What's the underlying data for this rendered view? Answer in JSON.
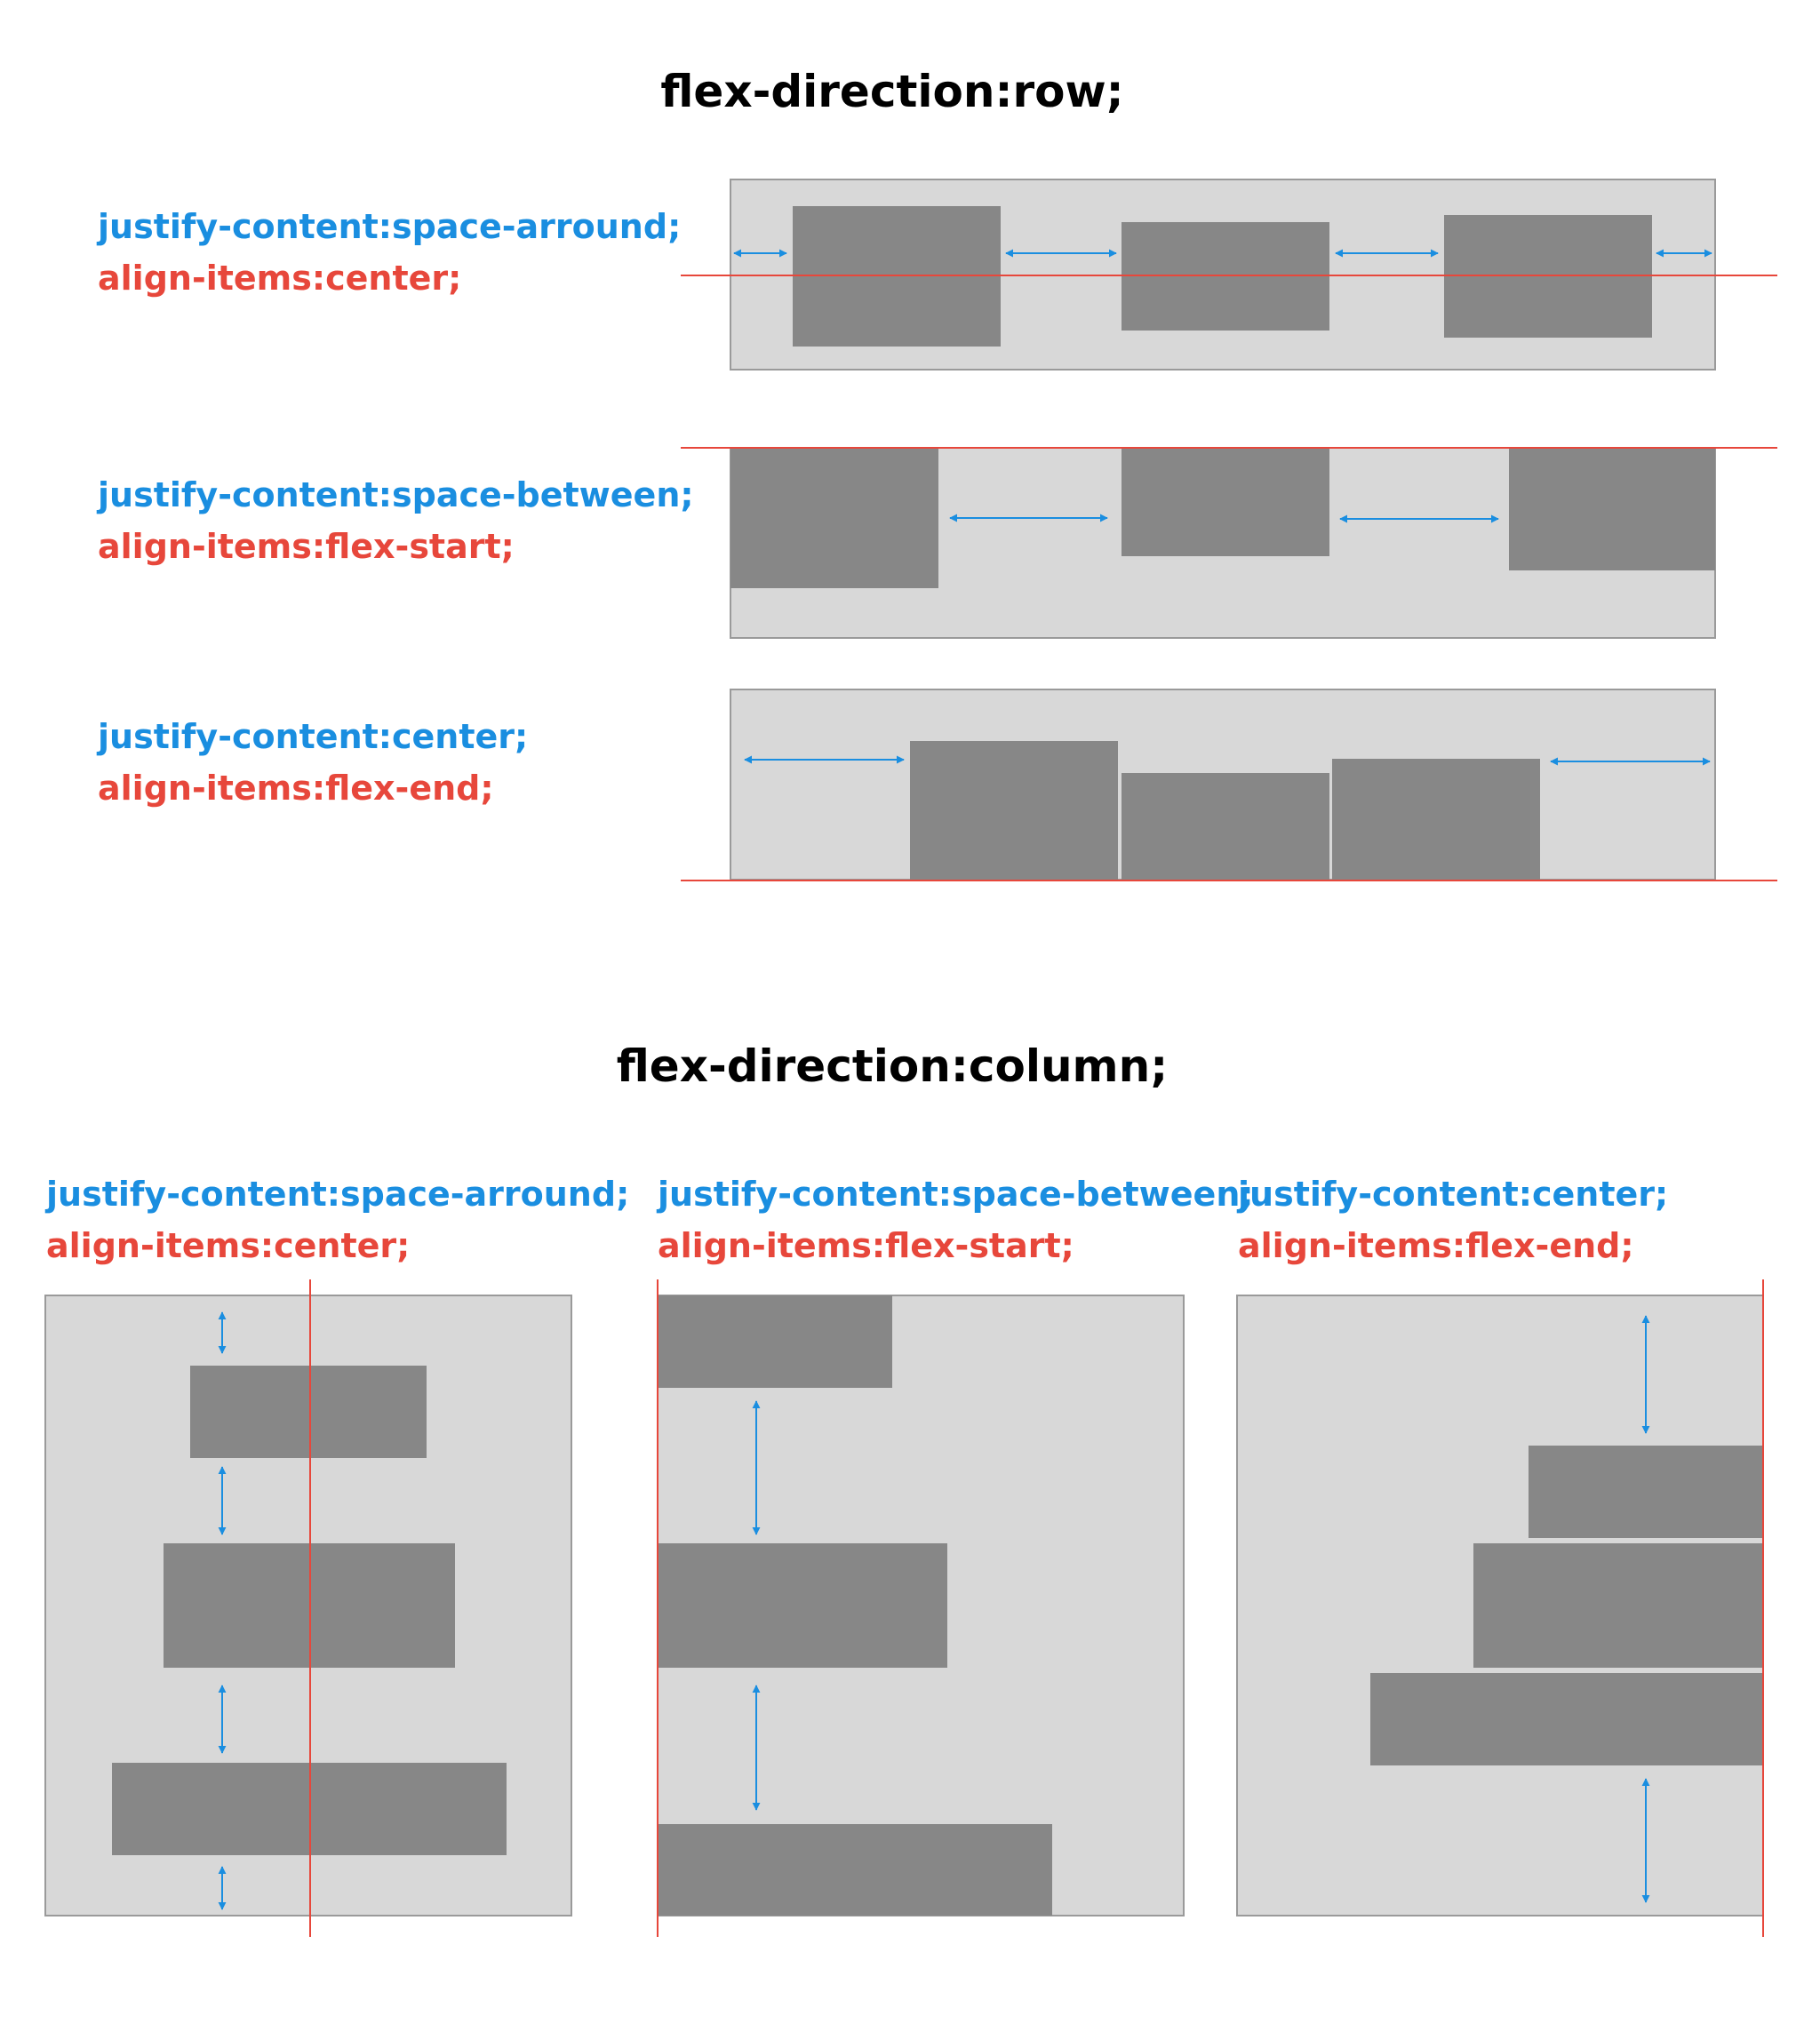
{
  "row_section": {
    "title": "flex-direction:row;",
    "examples": [
      {
        "justify": "justify-content:space-arround;",
        "align": "align-items:center;"
      },
      {
        "justify": "justify-content:space-between;",
        "align": "align-items:flex-start;"
      },
      {
        "justify": "justify-content:center;",
        "align": "align-items:flex-end;"
      }
    ]
  },
  "column_section": {
    "title": "flex-direction:column;",
    "examples": [
      {
        "justify": "justify-content:space-arround;",
        "align": "align-items:center;"
      },
      {
        "justify": "justify-content:space-between;",
        "align": "align-items:flex-start;"
      },
      {
        "justify": "justify-content:center;",
        "align": "align-items:flex-end;"
      }
    ]
  },
  "colors": {
    "justify_text": "#1a8ee0",
    "align_text": "#e7473b",
    "container_fill": "#d8d8d8",
    "item_fill": "#878787",
    "axis_line": "#e7473b",
    "spacing_arrow": "#1a8ee0"
  }
}
